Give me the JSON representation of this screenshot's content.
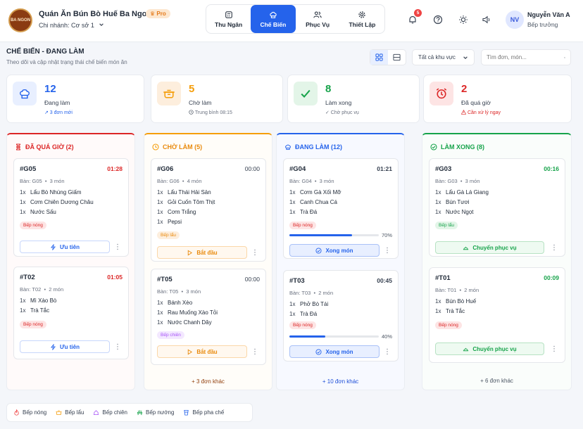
{
  "header": {
    "logo_text": "BA NGON",
    "restaurant_name": "Quán Ăn Bún Bò Huế Ba Ngon",
    "pro_badge": "Pro",
    "branch_label": "Chi nhánh: Cơ sở 1",
    "nav_tabs": [
      {
        "label": "Thu Ngân",
        "icon": "cash-register-icon"
      },
      {
        "label": "Chế Biến",
        "icon": "chef-hat-icon"
      },
      {
        "label": "Phục Vụ",
        "icon": "users-icon"
      },
      {
        "label": "Thiết Lập",
        "icon": "gear-icon"
      }
    ],
    "notification_count": "5",
    "user_initials": "NV",
    "user_name": "Nguyễn Văn A",
    "user_role": "Bếp trưởng"
  },
  "page": {
    "title": "CHẾ BIẾN - ĐANG LÀM",
    "subtitle": "Theo dõi và cập nhật trạng thái chế biến món ăn",
    "area_filter": "Tất cả khu vực",
    "search_placeholder": "Tìm đơn, món..."
  },
  "stats": [
    {
      "value": "12",
      "label": "Đang làm",
      "note": "↗ 3 đơn mới",
      "color": "#2563eb"
    },
    {
      "value": "5",
      "label": "Chờ làm",
      "note": "Trung bình 08:15",
      "color": "#f59e0b"
    },
    {
      "value": "8",
      "label": "Làm xong",
      "note": "✓ Chờ phục vụ",
      "color": "#16a34a"
    },
    {
      "value": "2",
      "label": "Đã quá giờ",
      "note": "Cần xử lý ngay",
      "color": "#dc2626"
    }
  ],
  "columns": [
    {
      "title": "ĐÃ QUÁ GIỜ (2)",
      "color": "#dc2626",
      "icon": "hourglass-icon",
      "more": "",
      "cards": [
        {
          "code": "#G05",
          "time": "01:28",
          "table": "Bàn: G05",
          "count": "3 món",
          "items": [
            {
              "q": "1x",
              "name": "Lẩu Bò Nhúng Giấm"
            },
            {
              "q": "1x",
              "name": "Cơm Chiên Dương Châu"
            },
            {
              "q": "1x",
              "name": "Nước Sấu"
            }
          ],
          "tag": "Bếp nóng",
          "action": "Ưu tiên"
        },
        {
          "code": "#T02",
          "time": "01:05",
          "table": "Bàn: T02",
          "count": "2 món",
          "items": [
            {
              "q": "1x",
              "name": "Mì Xào Bò"
            },
            {
              "q": "1x",
              "name": "Trà Tắc"
            }
          ],
          "tag": "Bếp nóng",
          "action": "Ưu tiên"
        }
      ]
    },
    {
      "title": "CHỜ LÀM (5)",
      "color": "#f59e0b",
      "icon": "clock-icon",
      "more": "+ 3 đơn khác",
      "cards": [
        {
          "code": "#G06",
          "time": "00:00",
          "table": "Bàn: G06",
          "count": "4 món",
          "items": [
            {
              "q": "1x",
              "name": "Lẩu Thái Hải Sản"
            },
            {
              "q": "1x",
              "name": "Gỏi Cuốn Tôm Thịt"
            },
            {
              "q": "1x",
              "name": "Cơm Trắng"
            },
            {
              "q": "1x",
              "name": "Pepsi"
            }
          ],
          "tag": "Bếp lẩu",
          "action": "Bắt đầu"
        },
        {
          "code": "#T05",
          "time": "00:00",
          "table": "Bàn: T05",
          "count": "3 món",
          "items": [
            {
              "q": "1x",
              "name": "Bánh Xèo"
            },
            {
              "q": "1x",
              "name": "Rau Muống Xào Tỏi"
            },
            {
              "q": "1x",
              "name": "Nước Chanh Dây"
            }
          ],
          "tag": "Bếp chiên",
          "action": "Bắt đầu"
        }
      ]
    },
    {
      "title": "ĐANG LÀM (12)",
      "color": "#2563eb",
      "icon": "chef-hat-icon",
      "more": "+ 10 đơn khác",
      "cards": [
        {
          "code": "#G04",
          "time": "01:21",
          "table": "Bàn: G04",
          "count": "3 món",
          "items": [
            {
              "q": "1x",
              "name": "Cơm Gà Xối Mỡ"
            },
            {
              "q": "1x",
              "name": "Canh Chua Cá"
            },
            {
              "q": "1x",
              "name": "Trà Đá"
            }
          ],
          "tag": "Bếp nóng",
          "progress": 0.7,
          "progress_label": "70%",
          "action": "Xong món"
        },
        {
          "code": "#T03",
          "time": "00:45",
          "table": "Bàn: T03",
          "count": "2 món",
          "items": [
            {
              "q": "1x",
              "name": "Phở Bò Tái"
            },
            {
              "q": "1x",
              "name": "Trà Đá"
            }
          ],
          "tag": "Bếp nóng",
          "progress": 0.4,
          "progress_label": "40%",
          "action": "Xong món"
        }
      ]
    },
    {
      "title": "LÀM XONG (8)",
      "color": "#16a34a",
      "icon": "check-circle-icon",
      "more": "+ 6 đơn khác",
      "cards": [
        {
          "code": "#G03",
          "time": "00:16",
          "table": "Bàn: G03",
          "count": "3 món",
          "items": [
            {
              "q": "1x",
              "name": "Lẩu Gà Lá Giang"
            },
            {
              "q": "1x",
              "name": "Bún Tươi"
            },
            {
              "q": "1x",
              "name": "Nước Ngọt"
            }
          ],
          "tag": "Bếp lẩu",
          "action": "Chuyển phục vụ"
        },
        {
          "code": "#T01",
          "time": "00:09",
          "table": "Bàn: T01",
          "count": "2 món",
          "items": [
            {
              "q": "1x",
              "name": "Bún Bò Huế"
            },
            {
              "q": "1x",
              "name": "Trà Tắc"
            }
          ],
          "tag": "Bếp nóng",
          "action": "Chuyển phục vụ"
        }
      ]
    }
  ],
  "legend": [
    {
      "label": "Bếp nóng",
      "color": "#ef4444",
      "icon": "flame-icon"
    },
    {
      "label": "Bếp lẩu",
      "color": "#f59e0b",
      "icon": "pot-icon"
    },
    {
      "label": "Bếp chiên",
      "color": "#a855f7",
      "icon": "pan-icon"
    },
    {
      "label": "Bếp nướng",
      "color": "#16a34a",
      "icon": "grill-icon"
    },
    {
      "label": "Bếp pha chế",
      "color": "#2563eb",
      "icon": "cup-icon"
    }
  ]
}
